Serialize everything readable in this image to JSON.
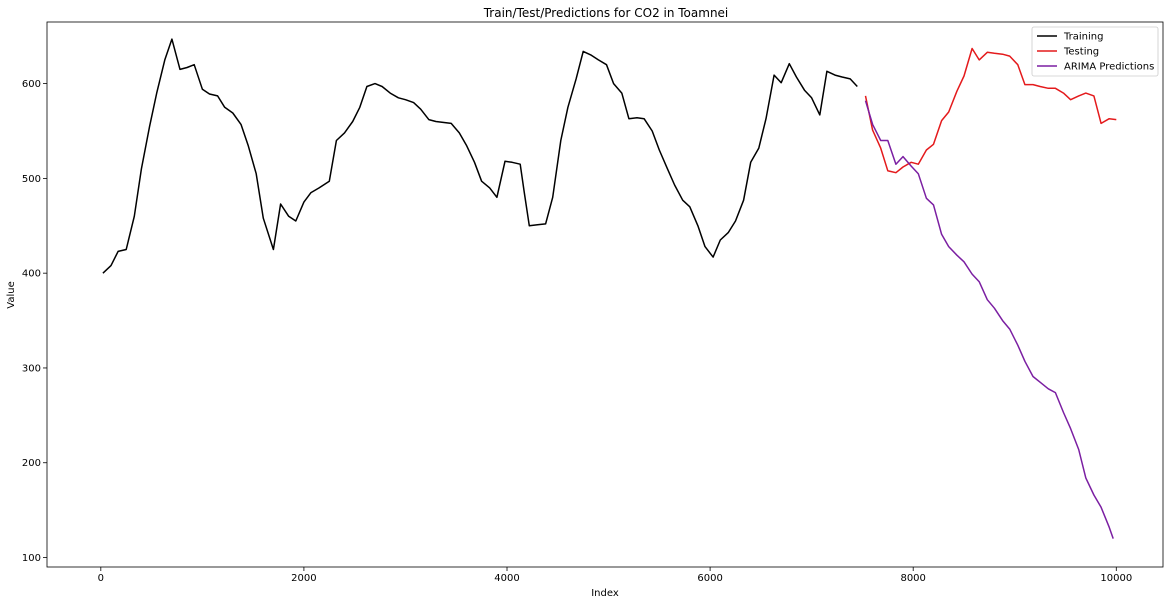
{
  "chart_data": {
    "type": "line",
    "title": "Train/Test/Predictions for CO2 in Toamnei",
    "xlabel": "Index",
    "ylabel": "Value",
    "xlim": [
      -530,
      10460
    ],
    "ylim": [
      90,
      665
    ],
    "xticks": [
      0,
      2000,
      4000,
      6000,
      8000,
      10000
    ],
    "yticks": [
      100,
      200,
      300,
      400,
      500,
      600
    ],
    "xtick_labels": [
      "0",
      "2000",
      "4000",
      "6000",
      "8000",
      "10000"
    ],
    "ytick_labels": [
      "100",
      "200",
      "300",
      "400",
      "500",
      "600"
    ],
    "legend_position": "top-right",
    "grid": false,
    "series": [
      {
        "name": "Training",
        "color": "#000000",
        "x": [
          20,
          100,
          170,
          250,
          330,
          400,
          480,
          550,
          630,
          700,
          780,
          850,
          920,
          1000,
          1070,
          1150,
          1220,
          1300,
          1380,
          1450,
          1530,
          1600,
          1700,
          1770,
          1850,
          1920,
          2000,
          2070,
          2150,
          2250,
          2320,
          2400,
          2480,
          2550,
          2620,
          2700,
          2770,
          2850,
          2930,
          3000,
          3080,
          3150,
          3230,
          3300,
          3380,
          3450,
          3530,
          3600,
          3680,
          3750,
          3830,
          3900,
          3980,
          4050,
          4130,
          4170,
          4220,
          4300,
          4380,
          4450,
          4530,
          4600,
          4680,
          4750,
          4830,
          4900,
          4980,
          5050,
          5130,
          5200,
          5280,
          5350,
          5430,
          5500,
          5580,
          5650,
          5730,
          5800,
          5880,
          5950,
          6030,
          6100,
          6180,
          6250,
          6330,
          6400,
          6480,
          6550,
          6630,
          6700,
          6780,
          6850,
          6930,
          7000,
          7080,
          7150,
          7230,
          7300,
          7380,
          7450
        ],
        "y": [
          400,
          408,
          423,
          425,
          460,
          510,
          555,
          590,
          625,
          647,
          615,
          617,
          620,
          594,
          589,
          587,
          575,
          569,
          557,
          535,
          505,
          458,
          425,
          473,
          460,
          455,
          475,
          485,
          490,
          497,
          540,
          548,
          560,
          575,
          597,
          600,
          597,
          590,
          585,
          583,
          580,
          573,
          562,
          560,
          559,
          558,
          548,
          535,
          517,
          497,
          490,
          480,
          518,
          517,
          515,
          485,
          450,
          451,
          452,
          480,
          540,
          575,
          605,
          634,
          630,
          625,
          620,
          600,
          590,
          563,
          564,
          563,
          550,
          530,
          510,
          493,
          477,
          470,
          450,
          428,
          417,
          435,
          443,
          455,
          477,
          517,
          532,
          563,
          609,
          601,
          621,
          607,
          593,
          585,
          567,
          613,
          609,
          607,
          605,
          597
        ]
      },
      {
        "name": "Testing",
        "color": "#e41a1c",
        "x": [
          7530,
          7600,
          7680,
          7750,
          7830,
          7900,
          7980,
          8050,
          8130,
          8200,
          8280,
          8350,
          8430,
          8500,
          8580,
          8650,
          8730,
          8800,
          8880,
          8950,
          9030,
          9100,
          9180,
          9250,
          9330,
          9400,
          9480,
          9550,
          9630,
          9700,
          9780,
          9850,
          9930,
          10000
        ],
        "y": [
          587,
          551,
          532,
          508,
          506,
          512,
          517,
          515,
          530,
          536,
          561,
          570,
          592,
          608,
          637,
          625,
          633,
          632,
          631,
          629,
          620,
          599,
          599,
          597,
          595,
          595,
          590,
          583,
          587,
          590,
          587,
          558,
          563,
          562
        ]
      },
      {
        "name": "ARIMA Predictions",
        "color": "#7b1fa2",
        "x": [
          7530,
          7600,
          7680,
          7750,
          7830,
          7900,
          7980,
          8050,
          8130,
          8200,
          8280,
          8350,
          8430,
          8500,
          8580,
          8650,
          8730,
          8800,
          8880,
          8950,
          9030,
          9100,
          9180,
          9250,
          9330,
          9400,
          9480,
          9550,
          9630,
          9700,
          9780,
          9850,
          9930,
          9970
        ],
        "y": [
          582,
          557,
          540,
          540,
          515,
          523,
          513,
          505,
          479,
          472,
          441,
          428,
          419,
          412,
          399,
          391,
          372,
          363,
          350,
          341,
          324,
          307,
          291,
          285,
          278,
          274,
          253,
          236,
          214,
          184,
          166,
          153,
          132,
          120
        ]
      }
    ]
  }
}
